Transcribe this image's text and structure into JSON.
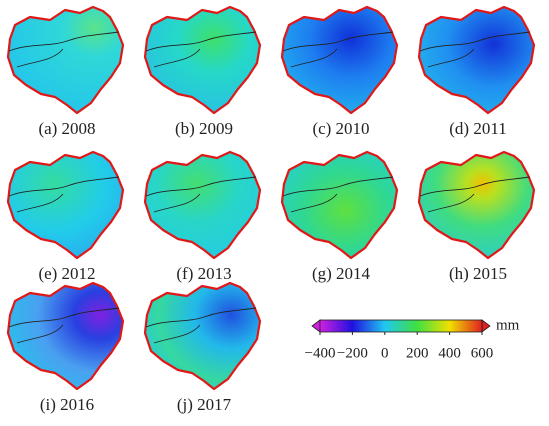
{
  "panels": [
    {
      "caption": "(a) 2008"
    },
    {
      "caption": "(b) 2009"
    },
    {
      "caption": "(c) 2010"
    },
    {
      "caption": "(d) 2011"
    },
    {
      "caption": "(e) 2012"
    },
    {
      "caption": "(f) 2013"
    },
    {
      "caption": "(g) 2014"
    },
    {
      "caption": "(h) 2015"
    },
    {
      "caption": "(i) 2016"
    },
    {
      "caption": "(j) 2017"
    }
  ],
  "colorbar": {
    "unit": "mm",
    "lim": [
      -400,
      600
    ],
    "ticks": [
      {
        "value": -400,
        "label": "−400"
      },
      {
        "value": -200,
        "label": "−200"
      },
      0,
      200,
      400,
      600
    ]
  }
}
